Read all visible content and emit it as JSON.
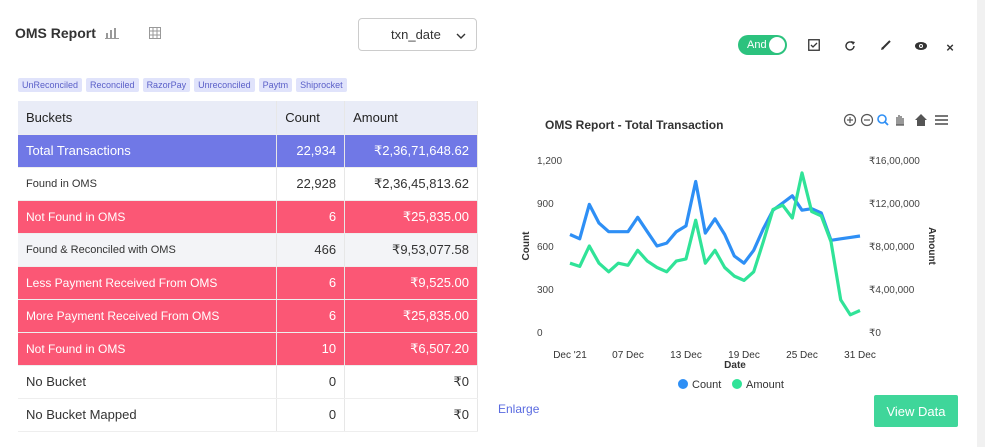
{
  "report": {
    "title": "OMS Report"
  },
  "select": {
    "value": "txn_date"
  },
  "toolbar": {
    "toggle_label": "And"
  },
  "tags": [
    "UnReconciled",
    "Reconciled",
    "RazorPay",
    "Unreconciled",
    "Paytm",
    "Shiprocket"
  ],
  "table": {
    "headers": [
      "Buckets",
      "Count",
      "Amount"
    ],
    "rows": [
      {
        "bucket": "Total Transactions",
        "count": "22,934",
        "amount": "₹2,36,71,648.62"
      },
      {
        "bucket": "Found in OMS",
        "count": "22,928",
        "amount": "₹2,36,45,813.62"
      },
      {
        "bucket": "Not Found in OMS",
        "count": "6",
        "amount": "₹25,835.00"
      },
      {
        "bucket": "Found & Reconciled with OMS",
        "count": "466",
        "amount": "₹9,53,077.58"
      },
      {
        "bucket": "Less Payment Received From OMS",
        "count": "6",
        "amount": "₹9,525.00"
      },
      {
        "bucket": "More Payment Received From OMS",
        "count": "6",
        "amount": "₹25,835.00"
      },
      {
        "bucket": "Not Found in OMS",
        "count": "10",
        "amount": "₹6,507.20"
      },
      {
        "bucket": "No Bucket",
        "count": "0",
        "amount": "₹0"
      },
      {
        "bucket": "No Bucket Mapped",
        "count": "0",
        "amount": "₹0"
      }
    ]
  },
  "actions": {
    "enlarge": "Enlarge",
    "view_data": "View Data"
  },
  "colors": {
    "count": "#2e8ff5",
    "amount": "#30e398",
    "total_row": "#7078e6",
    "red_row": "#fb5775"
  },
  "chart_data": {
    "type": "line",
    "title": "OMS Report - Total Transaction",
    "xlabel": "Date",
    "ylabel_left": "Count",
    "ylabel_right": "Amount",
    "x_ticks": [
      "Dec '21",
      "07 Dec",
      "13 Dec",
      "19 Dec",
      "25 Dec",
      "31 Dec"
    ],
    "y_left_ticks": [
      "0",
      "300",
      "600",
      "900",
      "1,200"
    ],
    "y_right_ticks": [
      "₹0",
      "₹4,00,000",
      "₹8,00,000",
      "₹12,00,000",
      "₹16,00,000"
    ],
    "ylim_left": [
      0,
      1200
    ],
    "ylim_right": [
      0,
      1600000
    ],
    "x": [
      "2021-12-01",
      "2021-12-02",
      "2021-12-03",
      "2021-12-04",
      "2021-12-05",
      "2021-12-06",
      "2021-12-07",
      "2021-12-08",
      "2021-12-09",
      "2021-12-10",
      "2021-12-11",
      "2021-12-12",
      "2021-12-13",
      "2021-12-14",
      "2021-12-15",
      "2021-12-16",
      "2021-12-17",
      "2021-12-18",
      "2021-12-19",
      "2021-12-20",
      "2021-12-21",
      "2021-12-22",
      "2021-12-23",
      "2021-12-24",
      "2021-12-25",
      "2021-12-26",
      "2021-12-27",
      "2021-12-28",
      "2021-12-29",
      "2021-12-30",
      "2021-12-31"
    ],
    "series": [
      {
        "name": "Count",
        "axis": "left",
        "values": [
          680,
          650,
          890,
          760,
          700,
          700,
          700,
          800,
          700,
          600,
          620,
          700,
          740,
          1050,
          690,
          790,
          680,
          530,
          480,
          570,
          720,
          850,
          900,
          950,
          850,
          860,
          830,
          640,
          650,
          660,
          670
        ]
      },
      {
        "name": "Amount",
        "axis": "right",
        "values": [
          640000,
          610000,
          800000,
          640000,
          560000,
          640000,
          620000,
          760000,
          660000,
          600000,
          560000,
          660000,
          680000,
          1040000,
          640000,
          760000,
          600000,
          520000,
          480000,
          560000,
          840000,
          1140000,
          1180000,
          1060000,
          1480000,
          1120000,
          1080000,
          840000,
          300000,
          160000,
          200000
        ]
      }
    ],
    "legend": "bottom",
    "grid": false
  }
}
